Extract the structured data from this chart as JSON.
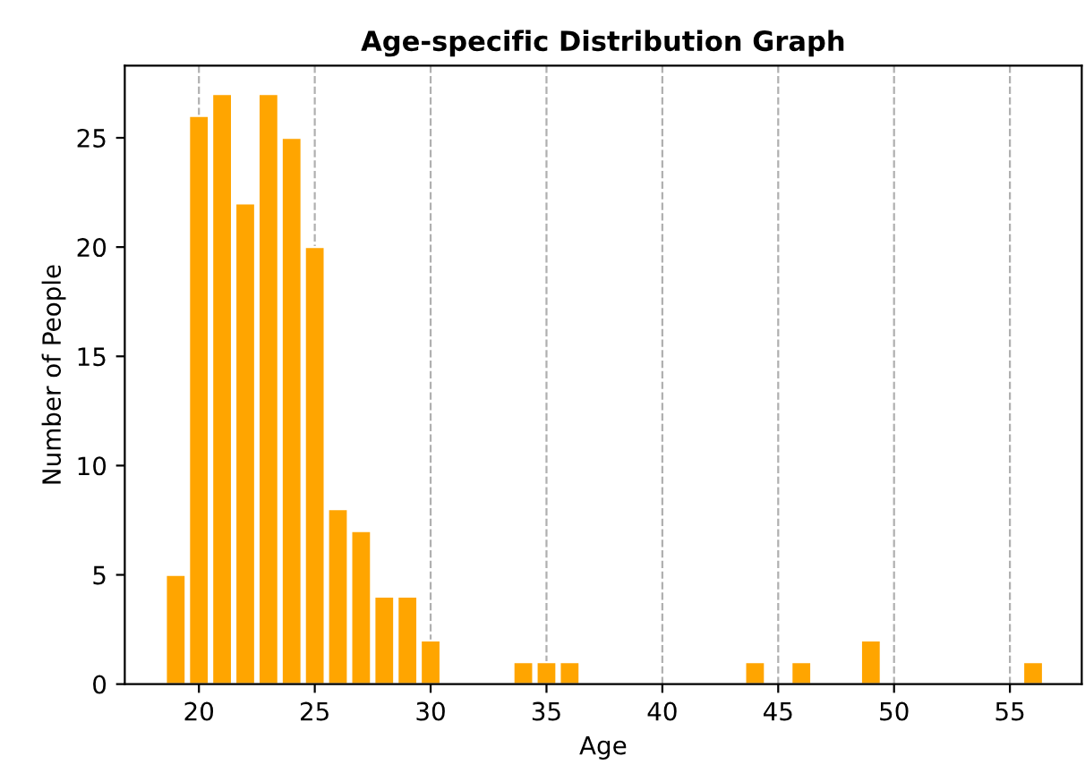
{
  "chart_data": {
    "type": "bar",
    "title": "Age-specific Distribution Graph",
    "xlabel": "Age",
    "ylabel": "Number of People",
    "x": [
      19,
      20,
      21,
      22,
      23,
      24,
      25,
      26,
      27,
      28,
      29,
      30,
      34,
      35,
      36,
      44,
      46,
      49,
      56
    ],
    "values": [
      5,
      26,
      27,
      22,
      27,
      25,
      20,
      8,
      7,
      4,
      4,
      2,
      1,
      1,
      1,
      1,
      1,
      2,
      1
    ],
    "color": "#ffa500",
    "xlim": [
      16.8,
      58.1
    ],
    "xticks": [
      20,
      25,
      30,
      35,
      40,
      45,
      50,
      55
    ],
    "ylim": [
      0,
      28.3
    ],
    "yticks": [
      0,
      5,
      10,
      15,
      20,
      25
    ],
    "grid": "x"
  }
}
